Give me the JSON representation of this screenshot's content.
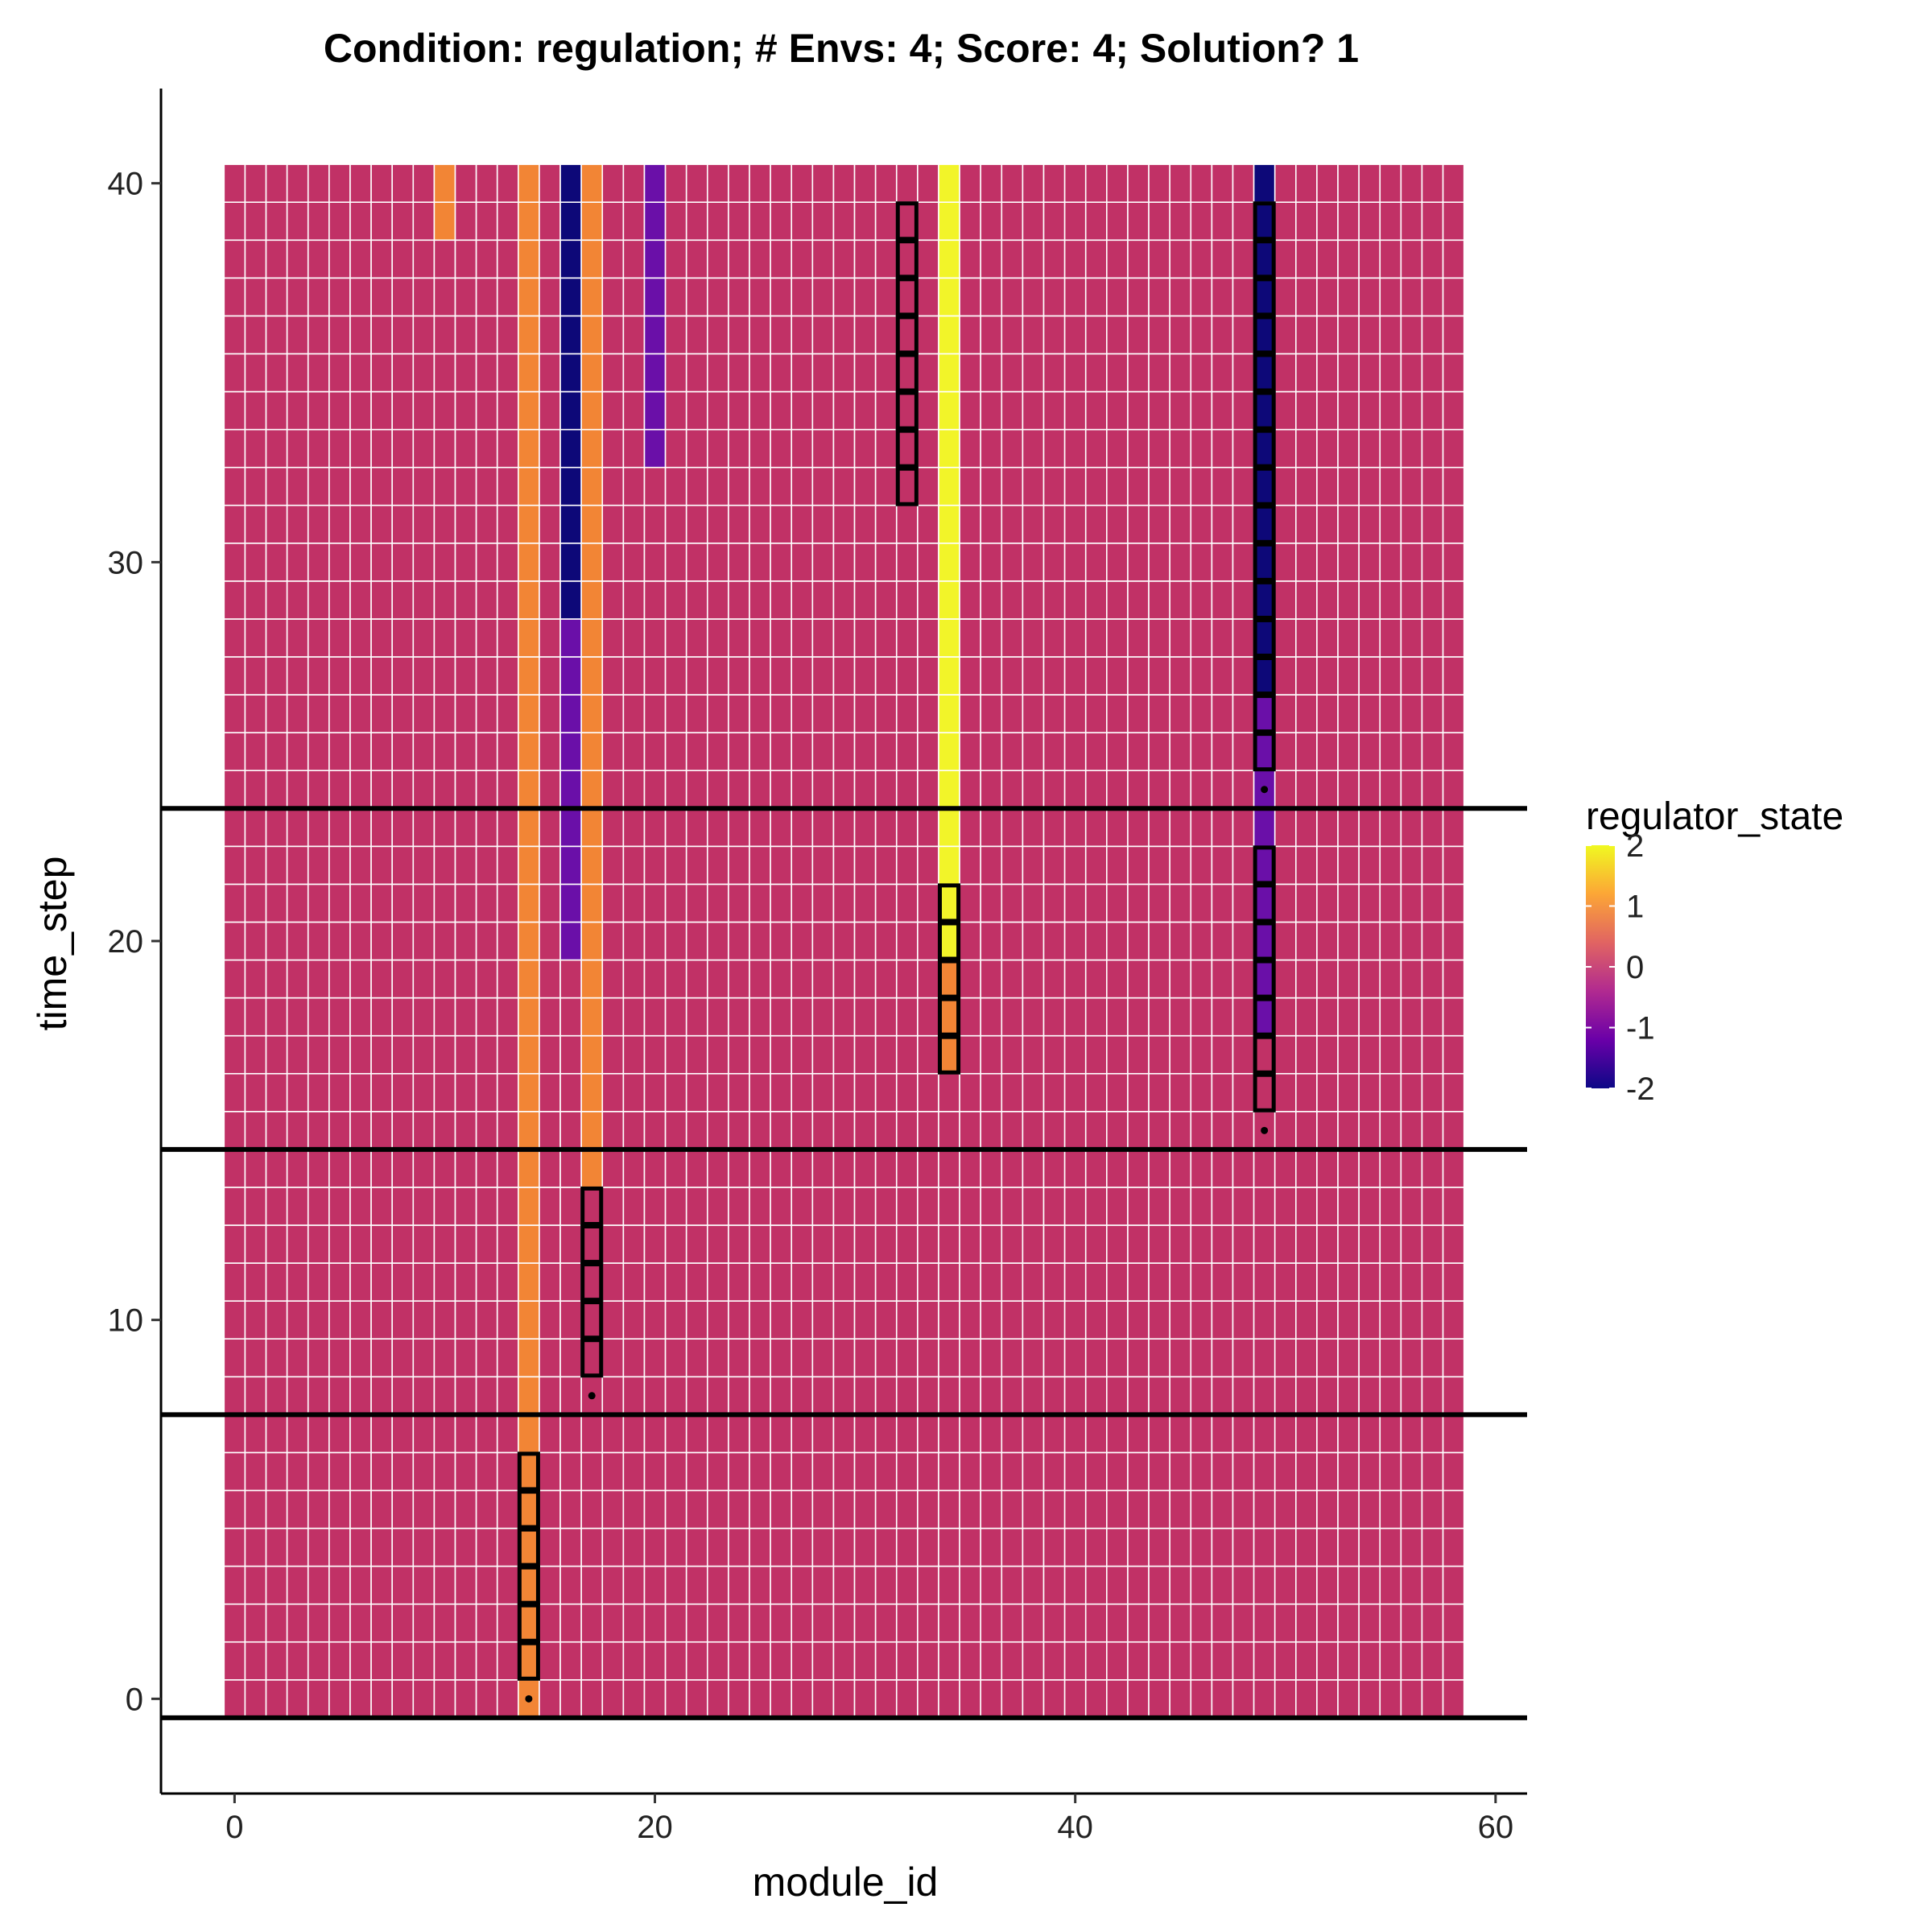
{
  "chart_data": {
    "type": "heatmap",
    "title": "Condition: regulation; # Envs: 4; Score: 4; Solution? 1",
    "xlabel": "module_id",
    "ylabel": "time_step",
    "x_range": [
      0,
      58
    ],
    "y_range": [
      0,
      40
    ],
    "xlim": [
      -3.5,
      61.5
    ],
    "ylim": [
      -2.5,
      42.5
    ],
    "x_ticks": [
      "0",
      "20",
      "40",
      "60"
    ],
    "y_ticks": [
      "0",
      "10",
      "20",
      "30",
      "40"
    ],
    "default_value": 0,
    "value_columns": [
      {
        "module_id": 10,
        "segments": [
          {
            "from": 39,
            "to": 40,
            "value": 1
          }
        ]
      },
      {
        "module_id": 14,
        "segments": [
          {
            "from": 0,
            "to": 40,
            "value": 1
          }
        ]
      },
      {
        "module_id": 16,
        "segments": [
          {
            "from": 20,
            "to": 28,
            "value": -1
          },
          {
            "from": 29,
            "to": 40,
            "value": -2
          }
        ]
      },
      {
        "module_id": 17,
        "segments": [
          {
            "from": 14,
            "to": 40,
            "value": 1
          }
        ]
      },
      {
        "module_id": 20,
        "segments": [
          {
            "from": 33,
            "to": 40,
            "value": -1
          }
        ]
      },
      {
        "module_id": 34,
        "segments": [
          {
            "from": 17,
            "to": 19,
            "value": 1
          },
          {
            "from": 20,
            "to": 40,
            "value": 2
          }
        ]
      },
      {
        "module_id": 49,
        "segments": [
          {
            "from": 18,
            "to": 26,
            "value": -1
          },
          {
            "from": 27,
            "to": 40,
            "value": -2
          }
        ]
      }
    ],
    "highlighted_cells": [
      {
        "module_id": 14,
        "from": 1,
        "to": 6
      },
      {
        "module_id": 17,
        "from": 9,
        "to": 13
      },
      {
        "module_id": 32,
        "from": 32,
        "to": 39
      },
      {
        "module_id": 34,
        "from": 17,
        "to": 21
      },
      {
        "module_id": 49,
        "from": 16,
        "to": 22
      },
      {
        "module_id": 49,
        "from": 25,
        "to": 39
      }
    ],
    "event_points": [
      {
        "module_id": 14,
        "time_step": 0
      },
      {
        "module_id": 17,
        "time_step": 8
      },
      {
        "module_id": 49,
        "time_step": 15
      },
      {
        "module_id": 49,
        "time_step": 24
      }
    ],
    "environment_boundaries": [
      -0.5,
      7.5,
      14.5,
      23.5
    ],
    "legend": {
      "title": "regulator_state",
      "min": -2,
      "max": 2,
      "labels": [
        "2",
        "1",
        "0",
        "-1",
        "-2"
      ],
      "colors": [
        "#0d0887",
        "#6a00a8",
        "#b12a90",
        "#e16462",
        "#fca636",
        "#f0f921"
      ]
    },
    "cell_colors": {
      "0": "#c13166",
      "1": "#f28535",
      "2": "#f2f429",
      "-1": "#6a0fa8",
      "-2": "#0d0878"
    }
  }
}
